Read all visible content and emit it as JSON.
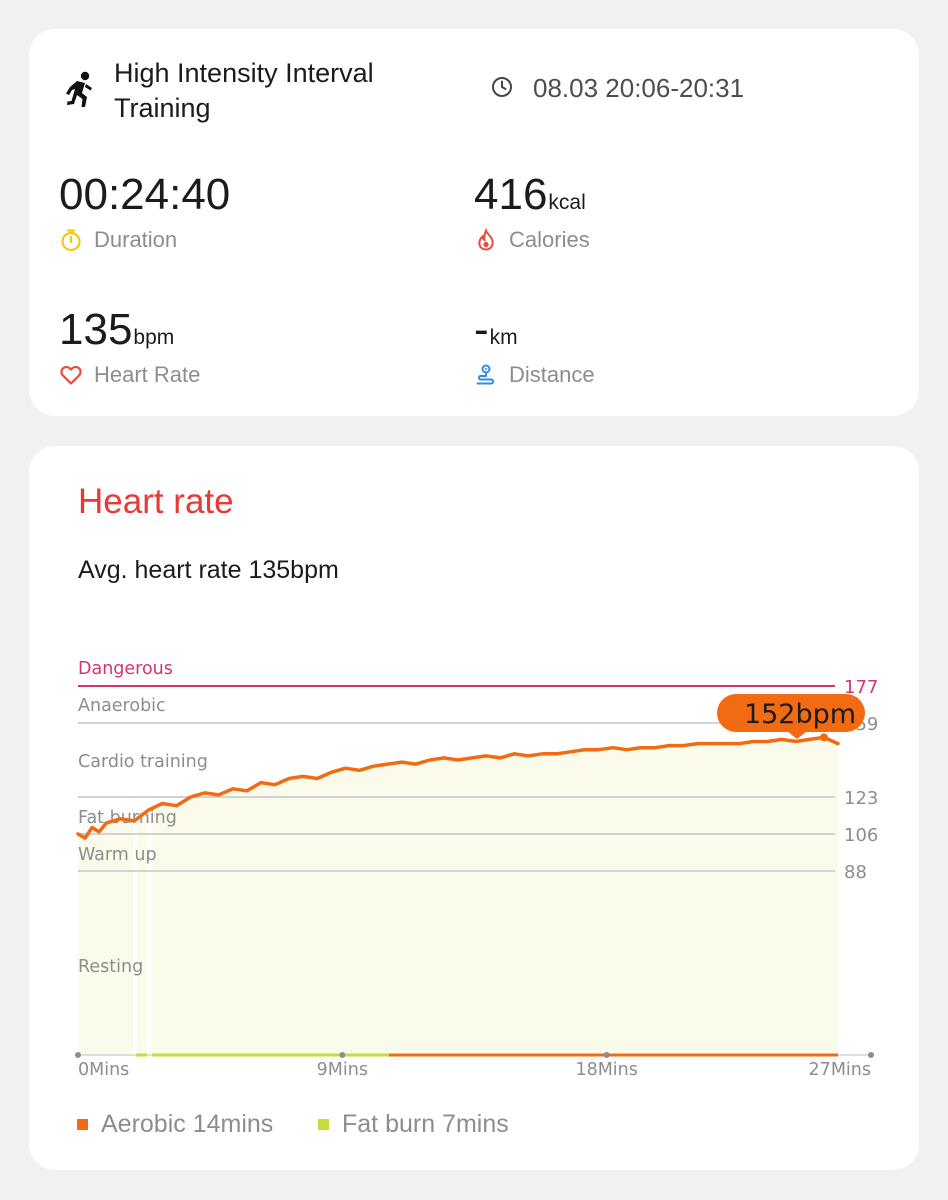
{
  "workout": {
    "title": "High Intensity Interval Training",
    "time": "08.03 20:06-20:31"
  },
  "metrics": {
    "duration": {
      "value": "00:24:40",
      "unit": "",
      "label": "Duration",
      "icon": "stopwatch-icon"
    },
    "calories": {
      "value": "416",
      "unit": "kcal",
      "label": "Calories",
      "icon": "flame-icon"
    },
    "heart_rate": {
      "value": "135",
      "unit": "bpm",
      "label": "Heart Rate",
      "icon": "heart-icon"
    },
    "distance": {
      "value": "-",
      "unit": "km",
      "label": "Distance",
      "icon": "route-icon"
    }
  },
  "heart_rate_card": {
    "title": "Heart rate",
    "avg_text": "Avg. heart rate 135bpm"
  },
  "legend": {
    "aerobic": "Aerobic 14mins",
    "fat_burn": "Fat burn 7mins"
  },
  "colors": {
    "accent_red": "#e53a36",
    "line_orange": "#f26b12",
    "fill_light": "#fafbea",
    "aerobic": "#f26b12",
    "fat_burn": "#c6dd3c",
    "dangerous": "#d8336d"
  },
  "chart_data": {
    "type": "line",
    "xlabel": "",
    "ylabel": "",
    "x_ticks": [
      "0Mins",
      "9Mins",
      "18Mins",
      "27Mins"
    ],
    "xlim": [
      0,
      27
    ],
    "zones": [
      {
        "name": "Dangerous",
        "lower": 177
      },
      {
        "name": "Anaerobic",
        "lower": 159
      },
      {
        "name": "Cardio training",
        "lower": 123
      },
      {
        "name": "Fat burning",
        "lower": 106
      },
      {
        "name": "Warm up",
        "lower": 88
      },
      {
        "name": "Resting",
        "lower": null
      }
    ],
    "threshold_labels": [
      "177",
      "159",
      "123",
      "106",
      "88"
    ],
    "callout": "152bpm",
    "series": [
      {
        "x": [
          0,
          0.25,
          0.5,
          0.75,
          1,
          1.5,
          2,
          2.5,
          3,
          3.5,
          4,
          4.5,
          5,
          5.5,
          6,
          6.5,
          7,
          7.5,
          8,
          8.5,
          9,
          9.5,
          10,
          10.5,
          11,
          11.5,
          12,
          12.5,
          13,
          13.5,
          14,
          14.5,
          15,
          15.5,
          16,
          16.5,
          17,
          17.5,
          18,
          18.5,
          19,
          19.5,
          20,
          20.5,
          21,
          21.5,
          22,
          22.5,
          23,
          23.5,
          24,
          24.5,
          25,
          25.5,
          26,
          26.5,
          27
        ],
        "y": [
          106,
          104,
          109,
          107,
          111,
          113,
          112,
          117,
          120,
          119,
          123,
          125,
          124,
          127,
          126,
          130,
          129,
          132,
          133,
          132,
          135,
          137,
          136,
          138,
          139,
          140,
          139,
          141,
          142,
          141,
          142,
          143,
          142,
          144,
          143,
          144,
          144,
          145,
          146,
          146,
          147,
          146,
          147,
          147,
          148,
          148,
          149,
          149,
          149,
          149,
          150,
          150,
          151,
          150,
          151,
          152,
          149
        ]
      }
    ]
  }
}
